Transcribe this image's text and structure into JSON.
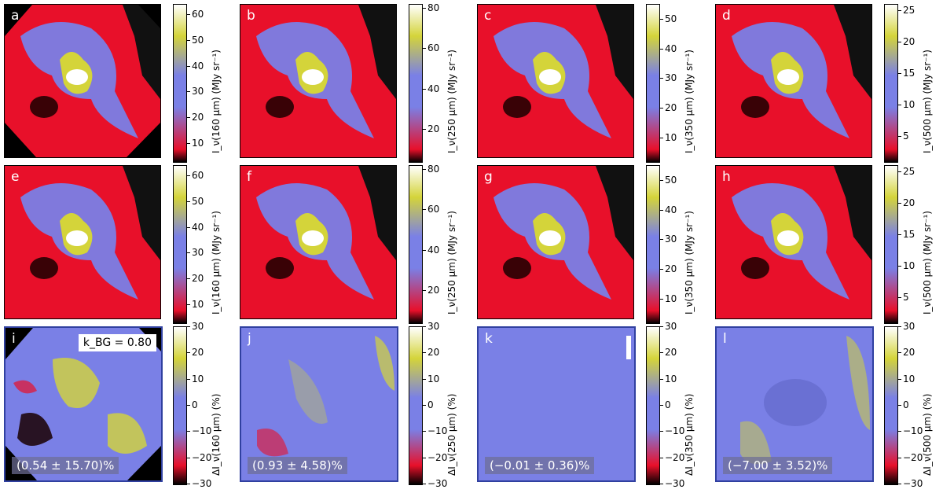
{
  "figure": {
    "row1_label": "I_ν(λ) (MJy sr⁻¹)",
    "row3_label": "ΔI_ν(λ) (%)",
    "k_label": "k_BG = 0.80"
  },
  "chart_data": {
    "type": "heatmap",
    "panels": [
      {
        "letter": "a",
        "cbar_label": "I_ν(160 μm) (MJy sr⁻¹)",
        "ticks": [
          "10",
          "20",
          "30",
          "40",
          "50",
          "60"
        ],
        "range": [
          3,
          64
        ]
      },
      {
        "letter": "b",
        "cbar_label": "I_ν(250 μm) (MJy sr⁻¹)",
        "ticks": [
          "20",
          "40",
          "60",
          "80"
        ],
        "range": [
          4,
          82
        ]
      },
      {
        "letter": "c",
        "cbar_label": "I_ν(350 μm) (MJy sr⁻¹)",
        "ticks": [
          "10",
          "20",
          "30",
          "40",
          "50"
        ],
        "range": [
          2,
          55
        ]
      },
      {
        "letter": "d",
        "cbar_label": "I_ν(500 μm) (MJy sr⁻¹)",
        "ticks": [
          "5",
          "10",
          "15",
          "20",
          "25"
        ],
        "range": [
          1,
          26
        ]
      },
      {
        "letter": "e",
        "cbar_label": "I_ν(160 μm) (MJy sr⁻¹)",
        "ticks": [
          "10",
          "20",
          "30",
          "40",
          "50",
          "60"
        ],
        "range": [
          3,
          64
        ]
      },
      {
        "letter": "f",
        "cbar_label": "I_ν(250 μm) (MJy sr⁻¹)",
        "ticks": [
          "20",
          "40",
          "60",
          "80"
        ],
        "range": [
          4,
          82
        ]
      },
      {
        "letter": "g",
        "cbar_label": "I_ν(350 μm) (MJy sr⁻¹)",
        "ticks": [
          "10",
          "20",
          "30",
          "40",
          "50"
        ],
        "range": [
          2,
          55
        ]
      },
      {
        "letter": "h",
        "cbar_label": "I_ν(500 μm) (MJy sr⁻¹)",
        "ticks": [
          "5",
          "10",
          "15",
          "20",
          "25"
        ],
        "range": [
          1,
          26
        ]
      },
      {
        "letter": "i",
        "cbar_label": "ΔI_ν(160 μm) (%)",
        "ticks": [
          "−30",
          "−20",
          "−10",
          "0",
          "10",
          "20",
          "30"
        ],
        "range": [
          -30,
          30
        ],
        "stat": "(0.54 ± 15.70)%",
        "k": "k_BG = 0.80"
      },
      {
        "letter": "j",
        "cbar_label": "ΔI_ν(250 μm) (%)",
        "ticks": [
          "−30",
          "−20",
          "−10",
          "0",
          "10",
          "20",
          "30"
        ],
        "range": [
          -30,
          30
        ],
        "stat": "(0.93 ± 4.58)%"
      },
      {
        "letter": "k",
        "cbar_label": "ΔI_ν(350 μm) (%)",
        "ticks": [
          "−30",
          "−20",
          "−10",
          "0",
          "10",
          "20",
          "30"
        ],
        "range": [
          -30,
          30
        ],
        "stat": "(−0.01 ± 0.36)%"
      },
      {
        "letter": "l",
        "cbar_label": "ΔI_ν(500 μm) (%)",
        "ticks": [
          "−30",
          "−20",
          "−10",
          "0",
          "10",
          "20",
          "30"
        ],
        "range": [
          -30,
          30
        ],
        "stat": "(−7.00 ± 3.52)%"
      }
    ]
  },
  "colors": {
    "map_low": "#000000",
    "map_red": "#e8102a",
    "map_blue": "#7a80e6",
    "map_yellow": "#d4d43a",
    "map_high": "#ffffff"
  }
}
